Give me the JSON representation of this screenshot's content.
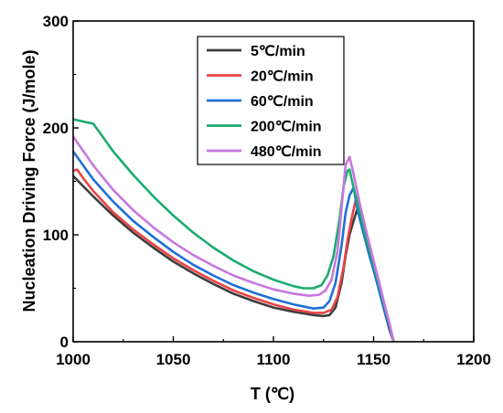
{
  "chart_data": {
    "type": "line",
    "xlabel": "T (℃)",
    "ylabel": "Nucleation Driving Force (J/mole)",
    "xlim": [
      1000,
      1200
    ],
    "ylim": [
      0,
      300
    ],
    "xticks": [
      1000,
      1050,
      1100,
      1150,
      1200
    ],
    "yticks": [
      0,
      100,
      200,
      300
    ],
    "xtick_labels": [
      "1000",
      "1050",
      "1100",
      "1150",
      "1200"
    ],
    "ytick_labels": [
      "0",
      "100",
      "200",
      "300"
    ],
    "grid": false,
    "legend_position": "top-right",
    "series": [
      {
        "name": "5℃/min",
        "color": "#3d3d3d",
        "points": [
          [
            1000,
            155
          ],
          [
            1010,
            136
          ],
          [
            1020,
            118
          ],
          [
            1030,
            102
          ],
          [
            1040,
            88
          ],
          [
            1050,
            75
          ],
          [
            1060,
            64
          ],
          [
            1070,
            54
          ],
          [
            1080,
            45
          ],
          [
            1090,
            38
          ],
          [
            1100,
            32
          ],
          [
            1110,
            28
          ],
          [
            1120,
            25
          ],
          [
            1125,
            24
          ],
          [
            1128,
            25
          ],
          [
            1131,
            32
          ],
          [
            1134,
            55
          ],
          [
            1136,
            80
          ],
          [
            1138,
            100
          ],
          [
            1140,
            113
          ],
          [
            1142,
            125
          ],
          [
            1143,
            128
          ],
          [
            1145,
            104
          ],
          [
            1148,
            83
          ],
          [
            1150,
            68
          ],
          [
            1152,
            54
          ],
          [
            1155,
            32
          ],
          [
            1158,
            11
          ],
          [
            1160,
            0
          ]
        ]
      },
      {
        "name": "20℃/min",
        "color": "#e84343",
        "points": [
          [
            1000,
            160
          ],
          [
            1002,
            161
          ],
          [
            1005,
            153
          ],
          [
            1010,
            141
          ],
          [
            1020,
            121
          ],
          [
            1030,
            105
          ],
          [
            1040,
            91
          ],
          [
            1050,
            78
          ],
          [
            1060,
            67
          ],
          [
            1070,
            57
          ],
          [
            1080,
            48
          ],
          [
            1090,
            41
          ],
          [
            1100,
            35
          ],
          [
            1110,
            30
          ],
          [
            1120,
            27
          ],
          [
            1125,
            27
          ],
          [
            1129,
            30
          ],
          [
            1132,
            42
          ],
          [
            1135,
            70
          ],
          [
            1137,
            95
          ],
          [
            1139,
            115
          ],
          [
            1141,
            132
          ],
          [
            1142,
            135
          ],
          [
            1145,
            109
          ],
          [
            1148,
            87
          ],
          [
            1150,
            72
          ],
          [
            1153,
            51
          ],
          [
            1156,
            30
          ],
          [
            1158,
            14
          ],
          [
            1160,
            0
          ]
        ]
      },
      {
        "name": "60℃/min",
        "color": "#1f6fd6",
        "points": [
          [
            1000,
            178
          ],
          [
            1010,
            152
          ],
          [
            1020,
            131
          ],
          [
            1030,
            113
          ],
          [
            1040,
            98
          ],
          [
            1050,
            84
          ],
          [
            1060,
            72
          ],
          [
            1070,
            62
          ],
          [
            1080,
            53
          ],
          [
            1090,
            46
          ],
          [
            1100,
            40
          ],
          [
            1110,
            35
          ],
          [
            1120,
            31
          ],
          [
            1125,
            32
          ],
          [
            1128,
            38
          ],
          [
            1131,
            55
          ],
          [
            1134,
            90
          ],
          [
            1136,
            120
          ],
          [
            1138,
            137
          ],
          [
            1140,
            144
          ],
          [
            1142,
            123
          ],
          [
            1145,
            101
          ],
          [
            1148,
            80
          ],
          [
            1150,
            67
          ],
          [
            1153,
            46
          ],
          [
            1156,
            26
          ],
          [
            1158,
            13
          ],
          [
            1160,
            0
          ]
        ]
      },
      {
        "name": "200℃/min",
        "color": "#1aad6e",
        "points": [
          [
            1000,
            208
          ],
          [
            1005,
            206
          ],
          [
            1010,
            204
          ],
          [
            1020,
            178
          ],
          [
            1030,
            156
          ],
          [
            1040,
            136
          ],
          [
            1050,
            118
          ],
          [
            1060,
            102
          ],
          [
            1070,
            88
          ],
          [
            1080,
            76
          ],
          [
            1090,
            66
          ],
          [
            1100,
            58
          ],
          [
            1110,
            52
          ],
          [
            1115,
            50
          ],
          [
            1120,
            50
          ],
          [
            1124,
            53
          ],
          [
            1127,
            62
          ],
          [
            1130,
            80
          ],
          [
            1133,
            115
          ],
          [
            1135,
            145
          ],
          [
            1137,
            160
          ],
          [
            1138,
            161
          ],
          [
            1140,
            144
          ],
          [
            1143,
            122
          ],
          [
            1146,
            99
          ],
          [
            1150,
            72
          ],
          [
            1153,
            51
          ],
          [
            1156,
            30
          ],
          [
            1158,
            16
          ],
          [
            1160,
            0
          ]
        ]
      },
      {
        "name": "480℃/min",
        "color": "#c777e0",
        "points": [
          [
            1000,
            192
          ],
          [
            1010,
            165
          ],
          [
            1020,
            142
          ],
          [
            1030,
            123
          ],
          [
            1040,
            107
          ],
          [
            1050,
            93
          ],
          [
            1060,
            81
          ],
          [
            1070,
            71
          ],
          [
            1080,
            62
          ],
          [
            1090,
            55
          ],
          [
            1100,
            49
          ],
          [
            1110,
            45
          ],
          [
            1118,
            43
          ],
          [
            1123,
            44
          ],
          [
            1126,
            48
          ],
          [
            1129,
            58
          ],
          [
            1132,
            85
          ],
          [
            1134,
            125
          ],
          [
            1136,
            165
          ],
          [
            1138,
            173
          ],
          [
            1140,
            157
          ],
          [
            1143,
            130
          ],
          [
            1146,
            106
          ],
          [
            1150,
            76
          ],
          [
            1153,
            54
          ],
          [
            1156,
            31
          ],
          [
            1158,
            17
          ],
          [
            1160,
            0
          ]
        ]
      }
    ]
  }
}
